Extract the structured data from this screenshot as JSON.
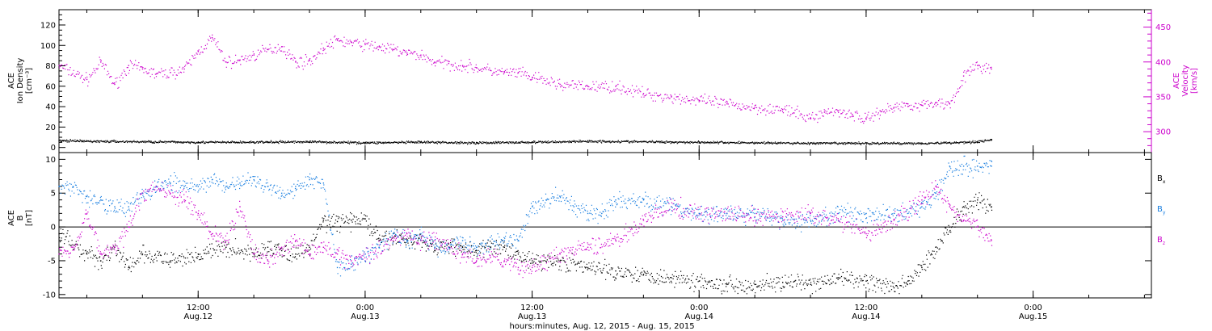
{
  "figure": {
    "xlabel": "hours:minutes, Aug. 12, 2015 - Aug. 15, 2015",
    "x_ticks": [
      {
        "time": "12:00",
        "date": "Aug.12",
        "t": 12
      },
      {
        "time": "0:00",
        "date": "Aug.13",
        "t": 24
      },
      {
        "time": "12:00",
        "date": "Aug.13",
        "t": 36
      },
      {
        "time": "0:00",
        "date": "Aug.14",
        "t": 48
      },
      {
        "time": "12:00",
        "date": "Aug.14",
        "t": 60
      },
      {
        "time": "0:00",
        "date": "Aug.15",
        "t": 72
      }
    ],
    "xlim_hours_from_aug12_0000": [
      2,
      80.5
    ],
    "colors": {
      "density": "#000000",
      "velocity": "#cc00cc",
      "bx": "#000000",
      "by": "#1a7fe0",
      "bz": "#cc00cc"
    }
  },
  "chart_data": [
    {
      "type": "scatter",
      "left_axis_label": [
        "ACE",
        "Ion Density",
        "[cm⁻³]"
      ],
      "right_axis_label": [
        "ACE",
        "Velocity",
        "[km/s]"
      ],
      "left_ylim": [
        -5,
        135
      ],
      "left_ticks": [
        0,
        20,
        40,
        60,
        80,
        100,
        120
      ],
      "right_ylim": [
        270,
        475
      ],
      "right_ticks": [
        300,
        350,
        400,
        450
      ],
      "series": [
        {
          "axis": "left",
          "x": [
            2,
            4,
            8,
            12,
            16,
            20,
            24,
            28,
            32,
            36,
            40,
            44,
            48,
            52,
            56,
            60,
            64,
            66,
            68,
            69
          ],
          "y": [
            7,
            6.5,
            6,
            5.5,
            5.5,
            6,
            5,
            5.5,
            5,
            5.5,
            6.5,
            6,
            5.5,
            5,
            4.5,
            4.5,
            4.5,
            5,
            6,
            8
          ]
        },
        {
          "axis": "right",
          "x": [
            2,
            4,
            5,
            6,
            7,
            8,
            9,
            10,
            11,
            12,
            13,
            14,
            15,
            16,
            17,
            18,
            19,
            20,
            21,
            22,
            23,
            24,
            25,
            26,
            27,
            28,
            29,
            30,
            31,
            32,
            33,
            34,
            35,
            36,
            38,
            40,
            42,
            44,
            46,
            48,
            50,
            52,
            54,
            56,
            57,
            58,
            59,
            60,
            61,
            62,
            63,
            64,
            65,
            66,
            67,
            68,
            69
          ],
          "y": [
            395,
            375,
            400,
            368,
            395,
            390,
            383,
            385,
            390,
            415,
            435,
            400,
            403,
            410,
            418,
            422,
            400,
            402,
            420,
            432,
            428,
            425,
            422,
            418,
            413,
            410,
            400,
            398,
            395,
            392,
            388,
            385,
            385,
            378,
            368,
            365,
            365,
            355,
            350,
            345,
            340,
            335,
            332,
            320,
            328,
            330,
            325,
            318,
            330,
            335,
            340,
            338,
            342,
            340,
            380,
            395,
            390
          ]
        }
      ]
    },
    {
      "type": "scatter",
      "left_axis_label": [
        "ACE",
        "B",
        "[nT]"
      ],
      "ylim": [
        -10.5,
        11
      ],
      "y_ticks": [
        -10,
        -5,
        0,
        5,
        10
      ],
      "zero_line": true,
      "series": [
        {
          "name": "Bx",
          "x": [
            2,
            4,
            5,
            6,
            7,
            8,
            10,
            12,
            14,
            16,
            17,
            18,
            19,
            20,
            21,
            22,
            23,
            24,
            25,
            26,
            27,
            28,
            29,
            30,
            31,
            32,
            33,
            34,
            35,
            36,
            38,
            40,
            42,
            44,
            46,
            48,
            50,
            52,
            54,
            56,
            58,
            60,
            62,
            63,
            64,
            65,
            66,
            67,
            68,
            69
          ],
          "y": [
            -1,
            -4,
            -5,
            -3,
            -6,
            -4,
            -5,
            -4,
            -3,
            -4,
            -3,
            -3.5,
            -4,
            -3,
            1,
            0.8,
            1,
            1.2,
            -2,
            -1.5,
            -2,
            -2,
            -3,
            -2.5,
            -3,
            -3.5,
            -3,
            -3,
            -4,
            -5,
            -5,
            -6,
            -6.5,
            -7,
            -7.5,
            -8,
            -8.5,
            -8.5,
            -8.2,
            -8.5,
            -7.5,
            -8,
            -9,
            -8,
            -6,
            -3,
            0,
            3,
            4,
            3
          ]
        },
        {
          "name": "By",
          "x": [
            2,
            3,
            4,
            5,
            6,
            7,
            8,
            9,
            10,
            11,
            12,
            13,
            14,
            15,
            16,
            17,
            18,
            19,
            20,
            21,
            22,
            23,
            24,
            25,
            26,
            27,
            28,
            29,
            30,
            31,
            32,
            34,
            35,
            36,
            37,
            38,
            39,
            40,
            41,
            42,
            44,
            46,
            48,
            50,
            52,
            54,
            56,
            58,
            60,
            62,
            64,
            65,
            66,
            67,
            68,
            69
          ],
          "y": [
            6,
            6,
            4.5,
            4,
            3,
            3,
            5,
            6,
            6.5,
            6,
            6,
            7,
            6,
            6.5,
            7,
            6,
            5,
            6,
            7,
            6.5,
            -6,
            -5.5,
            -4,
            -3,
            -1,
            -2,
            -1,
            -3,
            -3,
            -2,
            -3,
            -2,
            -2,
            3,
            4,
            4.5,
            3,
            2,
            2,
            4,
            4,
            3,
            2,
            2,
            2,
            1,
            1,
            2,
            2,
            2,
            3,
            5,
            9,
            9,
            9,
            9
          ]
        },
        {
          "name": "Bz",
          "x": [
            2,
            3,
            4,
            5,
            6,
            7,
            8,
            9,
            10,
            11,
            12,
            13,
            14,
            15,
            16,
            17,
            18,
            19,
            20,
            21,
            22,
            23,
            24,
            25,
            26,
            27,
            28,
            29,
            30,
            31,
            32,
            33,
            34,
            35,
            36,
            38,
            40,
            42,
            44,
            46,
            48,
            50,
            52,
            54,
            56,
            58,
            60,
            62,
            64,
            65,
            66,
            67,
            68,
            69
          ],
          "y": [
            -4,
            -3,
            2,
            -4,
            -3,
            0,
            5,
            6,
            5,
            4,
            2,
            -1,
            -2,
            3,
            -4,
            -5,
            -3,
            -2,
            -4,
            -3,
            -4,
            -5,
            -4,
            -3,
            -2,
            -1,
            -2,
            -2,
            -3,
            -4,
            -5,
            -4.5,
            -5,
            -6,
            -6,
            -4,
            -3,
            -2,
            1,
            3,
            2,
            2,
            1.5,
            1.5,
            2,
            1,
            -1,
            1,
            4,
            6,
            3,
            1,
            0,
            -2
          ]
        }
      ],
      "legend": [
        "Bx",
        "By",
        "Bz"
      ],
      "legend_placement": "right"
    }
  ]
}
